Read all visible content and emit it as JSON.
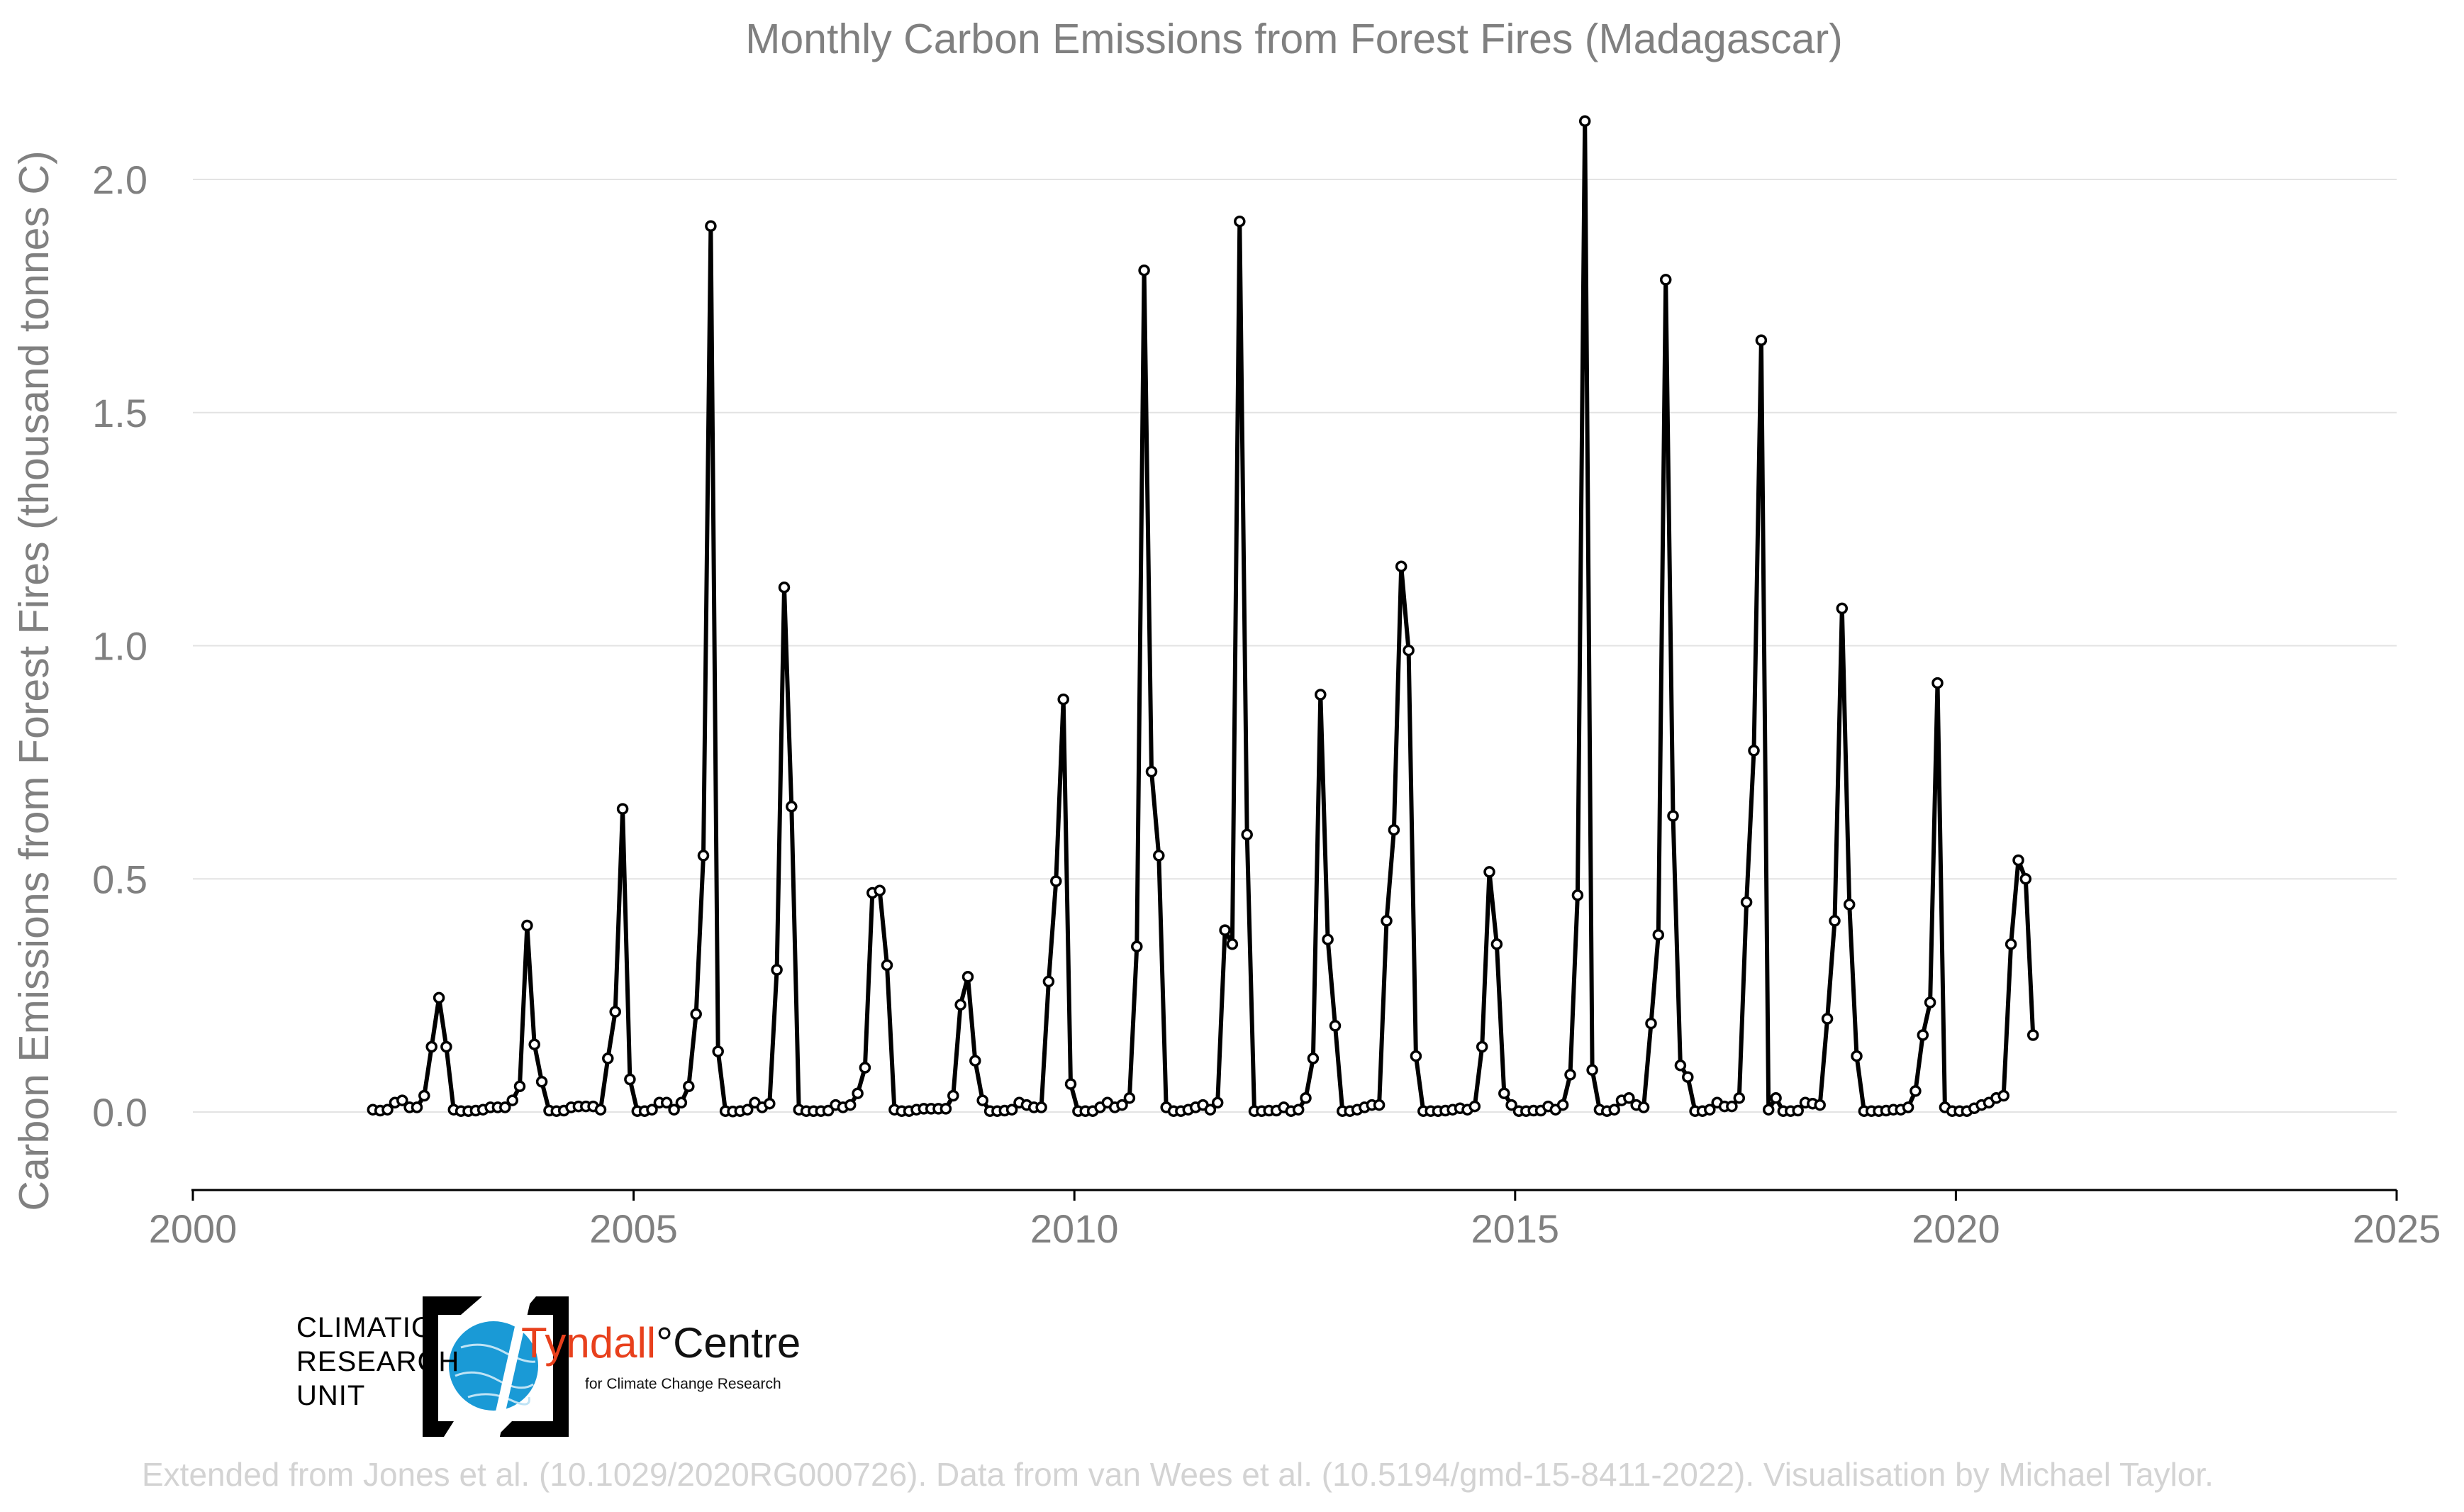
{
  "chart_data": {
    "type": "line",
    "title": "Monthly Carbon Emissions from Forest Fires (Madagascar)",
    "ylabel": "Carbon Emissions from Forest Fires (thousand tonnes C)",
    "xlabel": "",
    "xlim": [
      2000,
      2025
    ],
    "ylim": [
      -0.17,
      2.2
    ],
    "x_ticks": [
      2000,
      2005,
      2010,
      2015,
      2020,
      2025
    ],
    "y_ticks": [
      0.0,
      0.5,
      1.0,
      1.5,
      2.0
    ],
    "y_tick_labels": [
      "0.0",
      "0.5",
      "1.0",
      "1.5",
      "2.0"
    ],
    "grid": "horizontal",
    "line_color": "#000000",
    "marker_fill": "#ffffff",
    "series": [
      {
        "start": "2002-01",
        "frequency": "monthly",
        "values": [
          0.005,
          0.003,
          0.005,
          0.02,
          0.025,
          0.01,
          0.01,
          0.035,
          0.14,
          0.245,
          0.14,
          0.005,
          0.002,
          0.002,
          0.003,
          0.005,
          0.01,
          0.01,
          0.01,
          0.025,
          0.055,
          0.4,
          0.145,
          0.065,
          0.003,
          0.002,
          0.003,
          0.01,
          0.012,
          0.012,
          0.012,
          0.005,
          0.115,
          0.215,
          0.65,
          0.07,
          0.002,
          0.002,
          0.005,
          0.02,
          0.02,
          0.005,
          0.02,
          0.055,
          0.21,
          0.55,
          1.9,
          0.13,
          0.002,
          0.001,
          0.002,
          0.005,
          0.02,
          0.01,
          0.018,
          0.305,
          1.125,
          0.655,
          0.005,
          0.002,
          0.002,
          0.002,
          0.003,
          0.015,
          0.01,
          0.015,
          0.04,
          0.095,
          0.47,
          0.475,
          0.315,
          0.005,
          0.002,
          0.002,
          0.005,
          0.007,
          0.007,
          0.007,
          0.007,
          0.035,
          0.23,
          0.29,
          0.11,
          0.025,
          0.002,
          0.002,
          0.003,
          0.005,
          0.02,
          0.015,
          0.01,
          0.01,
          0.28,
          0.495,
          0.885,
          0.06,
          0.002,
          0.002,
          0.002,
          0.01,
          0.02,
          0.01,
          0.015,
          0.03,
          0.355,
          1.805,
          0.73,
          0.55,
          0.01,
          0.002,
          0.002,
          0.005,
          0.01,
          0.015,
          0.005,
          0.02,
          0.39,
          0.36,
          1.91,
          0.595,
          0.002,
          0.002,
          0.003,
          0.003,
          0.01,
          0.002,
          0.005,
          0.03,
          0.115,
          0.895,
          0.37,
          0.185,
          0.002,
          0.002,
          0.005,
          0.01,
          0.015,
          0.015,
          0.41,
          0.605,
          1.17,
          0.99,
          0.12,
          0.002,
          0.002,
          0.002,
          0.003,
          0.005,
          0.008,
          0.005,
          0.012,
          0.14,
          0.515,
          0.36,
          0.04,
          0.015,
          0.002,
          0.002,
          0.003,
          0.003,
          0.012,
          0.005,
          0.015,
          0.08,
          0.465,
          2.125,
          0.09,
          0.005,
          0.002,
          0.005,
          0.025,
          0.03,
          0.015,
          0.01,
          0.19,
          0.38,
          1.785,
          0.635,
          0.1,
          0.075,
          0.002,
          0.002,
          0.005,
          0.02,
          0.012,
          0.012,
          0.03,
          0.45,
          0.775,
          1.655,
          0.005,
          0.03,
          0.002,
          0.002,
          0.003,
          0.02,
          0.018,
          0.015,
          0.2,
          0.41,
          1.08,
          0.445,
          0.12,
          0.002,
          0.002,
          0.002,
          0.003,
          0.005,
          0.005,
          0.01,
          0.045,
          0.165,
          0.235,
          0.92,
          0.01,
          0.002,
          0.002,
          0.002,
          0.008,
          0.015,
          0.02,
          0.03,
          0.035,
          0.36,
          0.54,
          0.5,
          0.165
        ]
      }
    ]
  },
  "logos": {
    "cru_lines": [
      "CLIMATIC",
      "RESEARCH",
      "UNIT"
    ],
    "tyndall_part1": "Tyndall",
    "tyndall_part2": "°Centre",
    "tyndall_sub": "for Climate Change Research"
  },
  "footer": {
    "credit": "Extended from Jones et al. (10.1029/2020RG000726). Data from van Wees et al. (10.5194/gmd-15-8411-2022). Visualisation by Michael Taylor."
  }
}
